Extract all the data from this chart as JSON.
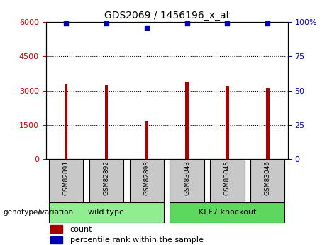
{
  "title": "GDS2069 / 1456196_x_at",
  "samples": [
    "GSM82891",
    "GSM82892",
    "GSM82893",
    "GSM83043",
    "GSM83045",
    "GSM83046"
  ],
  "counts": [
    3300,
    3250,
    1650,
    3400,
    3200,
    3100
  ],
  "percentile_ranks": [
    99,
    99,
    96,
    99,
    99,
    99
  ],
  "groups_info": [
    {
      "label": "wild type",
      "start": 0,
      "end": 2,
      "color": "#90EE90"
    },
    {
      "label": "KLF7 knockout",
      "start": 3,
      "end": 5,
      "color": "#5DD85D"
    }
  ],
  "bar_color": "#AA0000",
  "dot_color": "#0000BB",
  "left_yticks": [
    0,
    1500,
    3000,
    4500,
    6000
  ],
  "right_yticks": [
    0,
    25,
    50,
    75,
    100
  ],
  "ylim_left": [
    0,
    6000
  ],
  "ylim_right": [
    0,
    100
  ],
  "group_label_prefix": "genotype/variation",
  "legend_count_label": "count",
  "legend_pct_label": "percentile rank within the sample",
  "sample_box_color": "#C8C8C8",
  "bar_width": 0.08
}
